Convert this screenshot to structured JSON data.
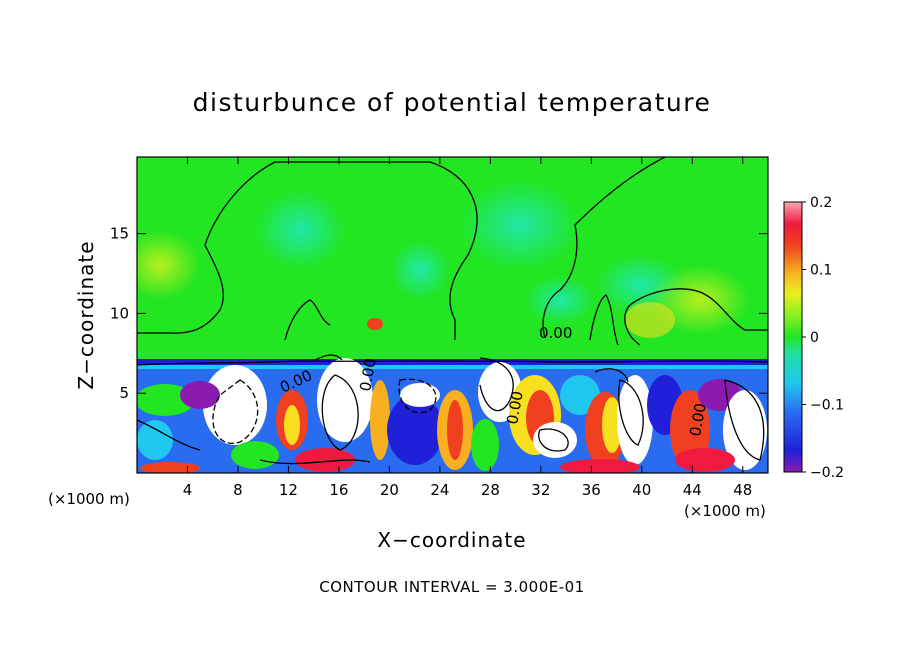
{
  "chart_data": {
    "type": "heatmap",
    "title": "disturbunce of potential temperature",
    "xlabel": "X−coordinate",
    "ylabel": "Z−coordinate",
    "x_unit": "(×1000 m)",
    "x_unit_right": "(×1000 m)",
    "x_ticks": [
      4,
      8,
      12,
      16,
      20,
      24,
      28,
      32,
      36,
      40,
      44,
      48
    ],
    "y_ticks": [
      5,
      10,
      15
    ],
    "xlim": [
      0,
      50
    ],
    "ylim": [
      0,
      19.8
    ],
    "colorbar": {
      "range": [
        -0.2,
        0.2
      ],
      "tick_values": [
        0.2,
        0.1,
        0,
        -0.1,
        -0.2
      ],
      "tick_labels": [
        "0.2",
        "0.1",
        "0",
        "−0.1",
        "−0.2"
      ]
    },
    "contour_interval_text": "CONTOUR INTERVAL = 3.000E-01",
    "contour_labels": [
      "0.00",
      "0.00",
      "0.00",
      "0.00",
      "0.00"
    ],
    "boundary_layer_top": 7.2,
    "upper_plumes": [
      {
        "center": 15,
        "top": 17.7,
        "width": 10
      },
      {
        "center": 37,
        "top": 18.6,
        "width": 9
      }
    ]
  },
  "colors": {
    "background_green": "#22e622",
    "frame": "#000000"
  }
}
